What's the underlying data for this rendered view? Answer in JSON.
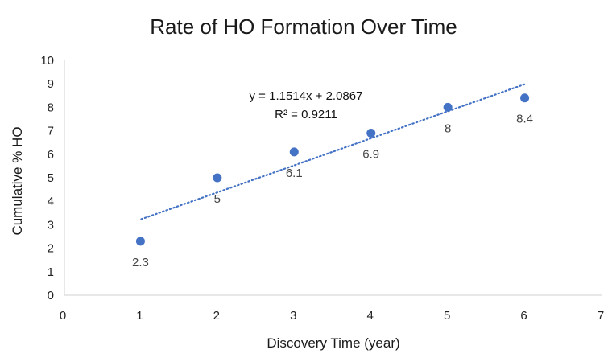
{
  "chart_data": {
    "type": "scatter",
    "title": "Rate of HO Formation Over Time",
    "xlabel": "Discovery Time (year)",
    "ylabel": "Cumulative % HO",
    "xlim": [
      0,
      7
    ],
    "ylim": [
      0,
      10
    ],
    "xticks": [
      0,
      1,
      2,
      3,
      4,
      5,
      6,
      7
    ],
    "yticks": [
      0,
      1,
      2,
      3,
      4,
      5,
      6,
      7,
      8,
      9,
      10
    ],
    "grid": false,
    "legend": "none",
    "series": [
      {
        "x": [
          1,
          2,
          3,
          4,
          5,
          6
        ],
        "y": [
          2.3,
          5,
          6.1,
          6.9,
          8,
          8.4
        ],
        "data_labels": [
          "2.3",
          "5",
          "6.1",
          "6.9",
          "8",
          "8.4"
        ],
        "color": "#4472C4"
      }
    ],
    "trendline": {
      "type": "linear",
      "slope": 1.1514,
      "intercept": 2.0867,
      "x_range": [
        1,
        6
      ],
      "style": "dotted",
      "color": "#4472C4",
      "equation": "y = 1.1514x + 2.0867",
      "r_squared": "R² = 0.9211"
    },
    "axis_color": "#d9d9d9"
  }
}
